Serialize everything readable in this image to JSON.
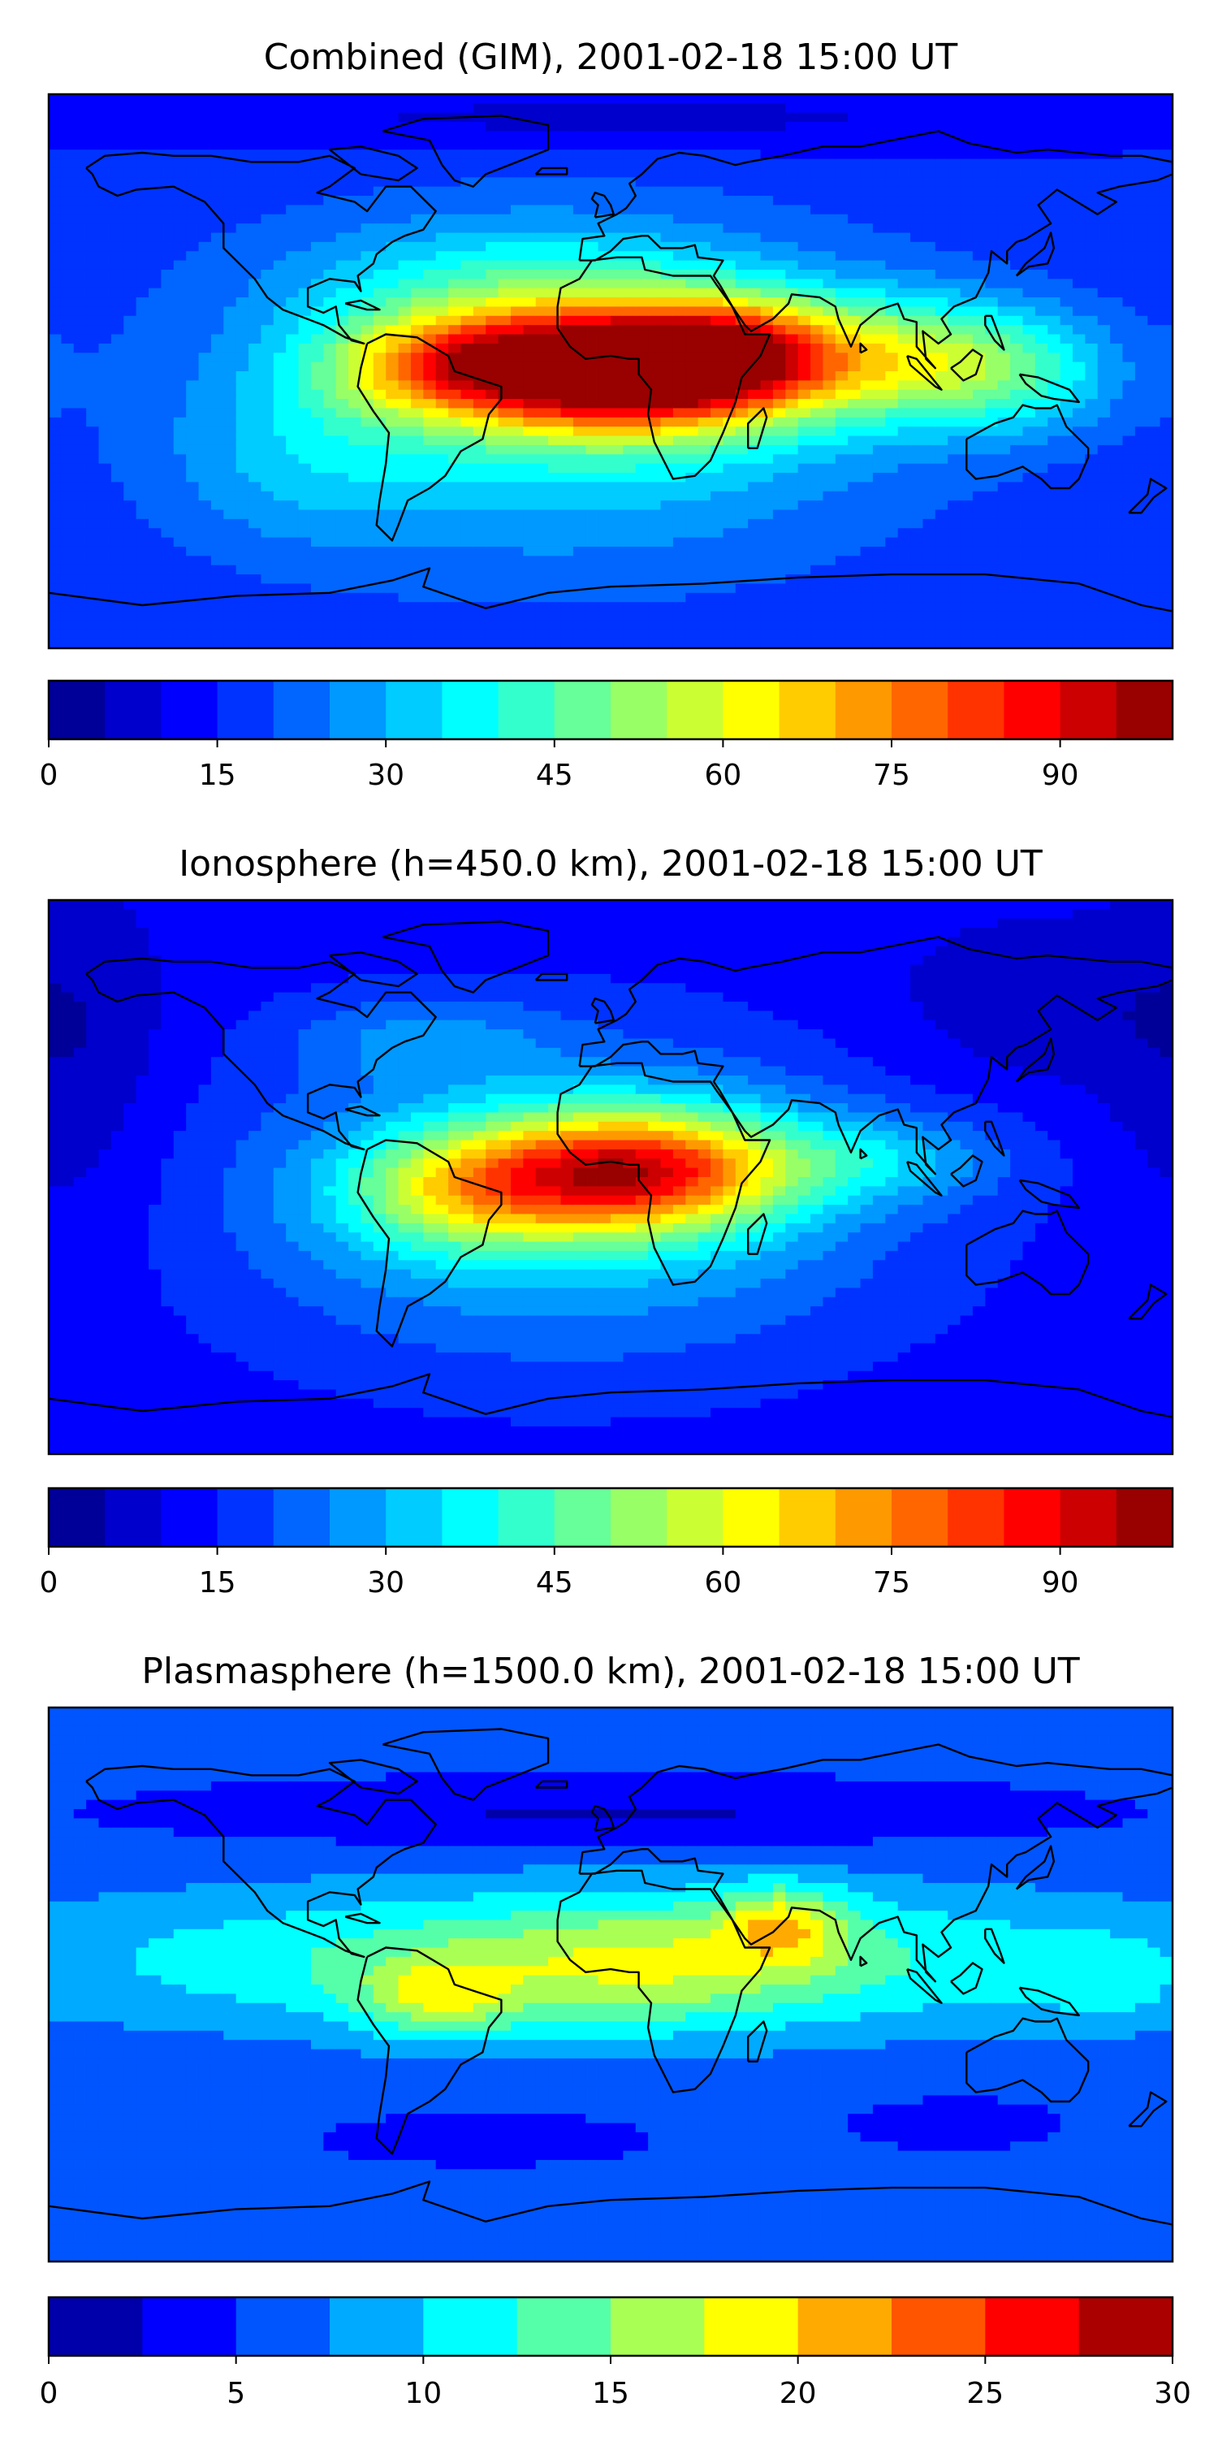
{
  "chart_data": [
    {
      "type": "heatmap",
      "title": "Combined (GIM), 2001-02-18 15:00 UT",
      "map": "world-equirectangular",
      "coastlines": true,
      "axes_ticks": false,
      "colormap": "jet",
      "colorbar": {
        "levels": [
          0,
          5,
          10,
          15,
          20,
          25,
          30,
          35,
          40,
          45,
          50,
          55,
          60,
          65,
          70,
          75,
          80,
          85,
          90,
          95,
          100
        ],
        "ticks": [
          0,
          15,
          30,
          45,
          60,
          75,
          90
        ],
        "tick_labels": [
          "0",
          "15",
          "30",
          "45",
          "60",
          "75",
          "90"
        ],
        "range": [
          0,
          100
        ]
      },
      "field": {
        "background": 16,
        "blobs": [
          {
            "lon": 5,
            "lat": 1,
            "amp": 76,
            "slon": 34,
            "slat": 14
          },
          {
            "lon": -52,
            "lat": 2,
            "amp": 38,
            "slon": 28,
            "slat": 12
          },
          {
            "lon": 40,
            "lat": 6,
            "amp": 30,
            "slon": 22,
            "slat": 12
          },
          {
            "lon": 90,
            "lat": 4,
            "amp": 32,
            "slon": 35,
            "slat": 14
          },
          {
            "lon": 130,
            "lat": -2,
            "amp": 14,
            "slon": 25,
            "slat": 14
          },
          {
            "lon": -15,
            "lat": -8,
            "amp": 24,
            "slon": 75,
            "slat": 36
          },
          {
            "lon": -30,
            "lat": 30,
            "amp": 12,
            "slon": 50,
            "slat": 14
          },
          {
            "lon": -100,
            "lat": -30,
            "amp": 8,
            "slon": 30,
            "slat": 20
          },
          {
            "lon": 0,
            "lat": 82,
            "amp": -8,
            "slon": 120,
            "slat": 8
          }
        ]
      }
    },
    {
      "type": "heatmap",
      "title": "Ionosphere  (h=450.0 km), 2001-02-18 15:00 UT",
      "map": "world-equirectangular",
      "coastlines": true,
      "axes_ticks": false,
      "colormap": "jet",
      "colorbar": {
        "levels": [
          0,
          5,
          10,
          15,
          20,
          25,
          30,
          35,
          40,
          45,
          50,
          55,
          60,
          65,
          70,
          75,
          80,
          85,
          90,
          95,
          100
        ],
        "ticks": [
          0,
          15,
          30,
          45,
          60,
          75,
          90
        ],
        "tick_labels": [
          "0",
          "15",
          "30",
          "45",
          "60",
          "75",
          "90"
        ],
        "range": [
          0,
          100
        ]
      },
      "field": {
        "background": 12,
        "blobs": [
          {
            "lon": 8,
            "lat": 2,
            "amp": 60,
            "slon": 34,
            "slat": 14
          },
          {
            "lon": -48,
            "lat": -4,
            "amp": 28,
            "slon": 28,
            "slat": 14
          },
          {
            "lon": 85,
            "lat": 6,
            "amp": 14,
            "slon": 30,
            "slat": 10
          },
          {
            "lon": -15,
            "lat": -8,
            "amp": 22,
            "slon": 75,
            "slat": 36
          },
          {
            "lon": -60,
            "lat": 45,
            "amp": 10,
            "slon": 30,
            "slat": 10
          },
          {
            "lon": 140,
            "lat": 55,
            "amp": -6,
            "slon": 40,
            "slat": 20
          },
          {
            "lon": -170,
            "lat": 30,
            "amp": -6,
            "slon": 20,
            "slat": 40
          }
        ]
      }
    },
    {
      "type": "heatmap",
      "title": "Plasmasphere (h=1500.0 km), 2001-02-18 15:00 UT",
      "map": "world-equirectangular",
      "coastlines": true,
      "axes_ticks": false,
      "colormap": "jet",
      "colorbar": {
        "levels": [
          0,
          2.5,
          5,
          7.5,
          10,
          12.5,
          15,
          17.5,
          20,
          22.5,
          25,
          27.5,
          30
        ],
        "ticks": [
          0,
          5,
          10,
          15,
          20,
          25,
          30
        ],
        "tick_labels": [
          "0",
          "5",
          "10",
          "15",
          "20",
          "25",
          "30"
        ],
        "range": [
          0,
          30
        ]
      },
      "field": {
        "background": 5.5,
        "blobs": [
          {
            "lon": 0,
            "lat": 8,
            "amp": 9,
            "slon": 130,
            "slat": 17
          },
          {
            "lon": -55,
            "lat": -5,
            "amp": 7,
            "slon": 18,
            "slat": 9
          },
          {
            "lon": 55,
            "lat": 20,
            "amp": 8,
            "slon": 14,
            "slat": 9
          },
          {
            "lon": 10,
            "lat": 5,
            "amp": 4,
            "slon": 35,
            "slat": 15
          },
          {
            "lon": 160,
            "lat": 0,
            "amp": 3,
            "slon": 15,
            "slat": 10
          },
          {
            "lon": 0,
            "lat": 55,
            "amp": -3.5,
            "slon": 90,
            "slat": 7
          },
          {
            "lon": -40,
            "lat": -50,
            "amp": -2.5,
            "slon": 30,
            "slat": 5
          },
          {
            "lon": 110,
            "lat": -45,
            "amp": -2.5,
            "slon": 20,
            "slat": 5
          }
        ]
      }
    }
  ]
}
